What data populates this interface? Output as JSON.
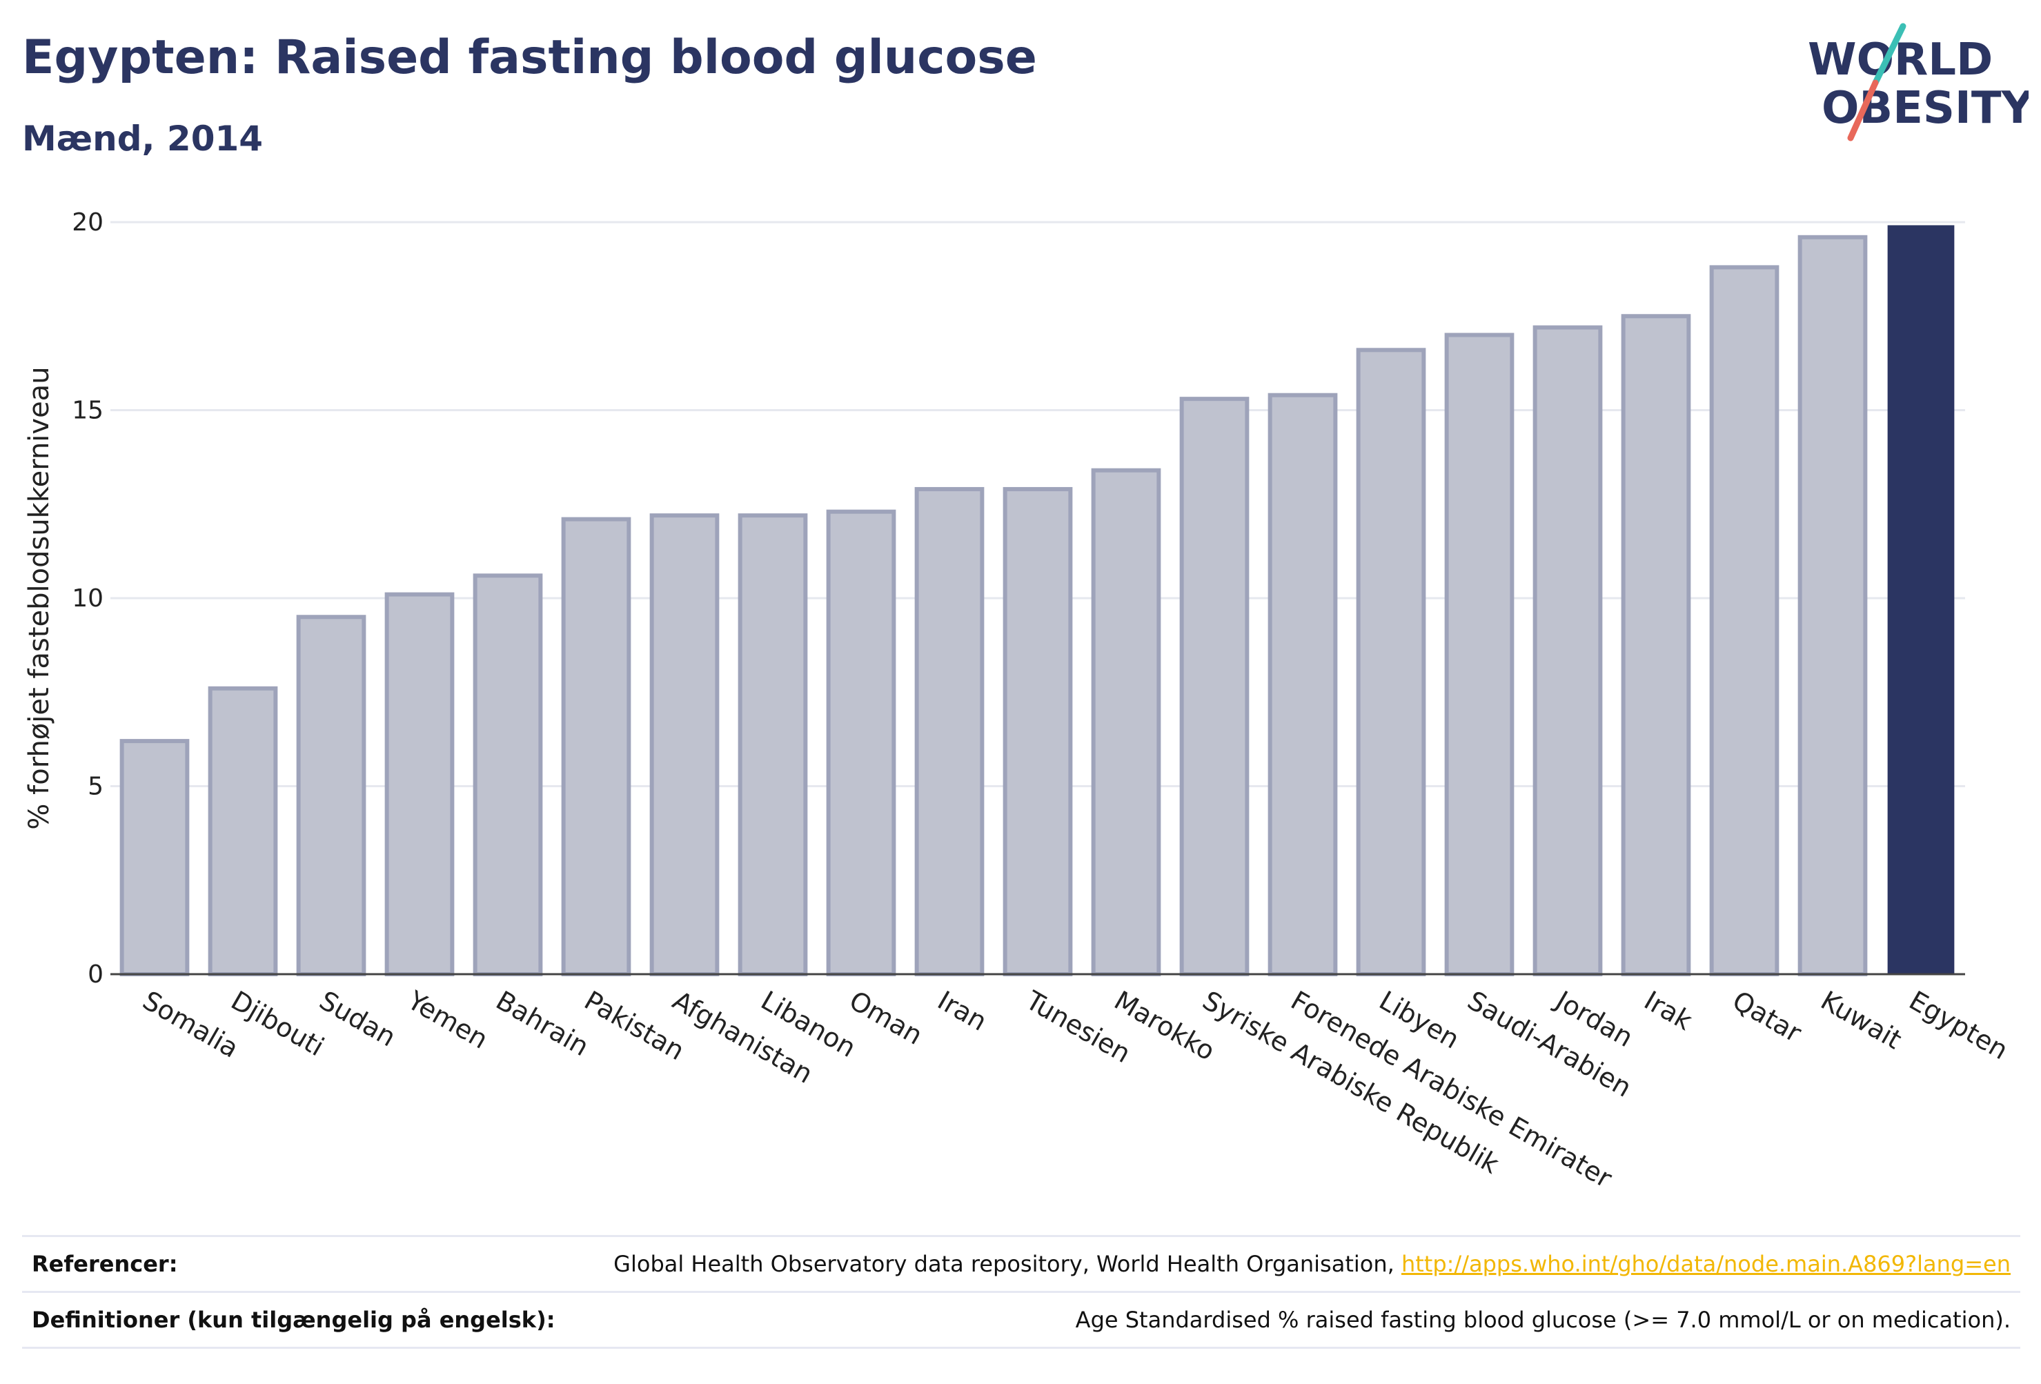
{
  "header": {
    "title": "Egypten: Raised fasting blood glucose",
    "subtitle": "Mænd, 2014"
  },
  "logo": {
    "line1": "WORLD",
    "line2": "OBESITY",
    "colors": {
      "text": "#2b3562",
      "slash_top": "#3bbfb5",
      "slash_bottom": "#e8685a"
    }
  },
  "chart_data": {
    "type": "bar",
    "title": "Egypten: Raised fasting blood glucose",
    "subtitle": "Mænd, 2014",
    "xlabel": "",
    "ylabel": "% forhøjet fasteblodsukkerniveau",
    "ylim": [
      0,
      20
    ],
    "yticks": [
      0,
      5,
      10,
      15,
      20
    ],
    "grid": true,
    "categories": [
      "Somalia",
      "Djibouti",
      "Sudan",
      "Yemen",
      "Bahrain",
      "Pakistan",
      "Afghanistan",
      "Libanon",
      "Oman",
      "Iran",
      "Tunesien",
      "Marokko",
      "Syriske Arabiske Republik",
      "Forenede Arabiske Emirater",
      "Libyen",
      "Saudi-Arabien",
      "Jordan",
      "Irak",
      "Qatar",
      "Kuwait",
      "Egypten"
    ],
    "values": [
      6.2,
      7.6,
      9.5,
      10.1,
      10.6,
      12.1,
      12.2,
      12.2,
      12.3,
      12.9,
      12.9,
      13.4,
      15.3,
      15.4,
      16.6,
      17.0,
      17.2,
      17.5,
      18.8,
      19.6,
      19.9
    ],
    "highlight": "Egypten",
    "colors": {
      "bar": "#bfc2cf",
      "bar_border": "#9ea3ba",
      "highlight": "#2b3562",
      "grid": "#e6e8ef",
      "axis": "#444444"
    }
  },
  "footer": {
    "references": {
      "label": "Referencer:",
      "text": "Global Health Observatory data repository, World Health Organisation, ",
      "link": "http://apps.who.int/gho/data/node.main.A869?lang=en"
    },
    "definitions": {
      "label": "Definitioner (kun tilgængelig på engelsk):",
      "text": "Age Standardised % raised fasting blood glucose (>= 7.0 mmol/L or on medication)."
    }
  }
}
